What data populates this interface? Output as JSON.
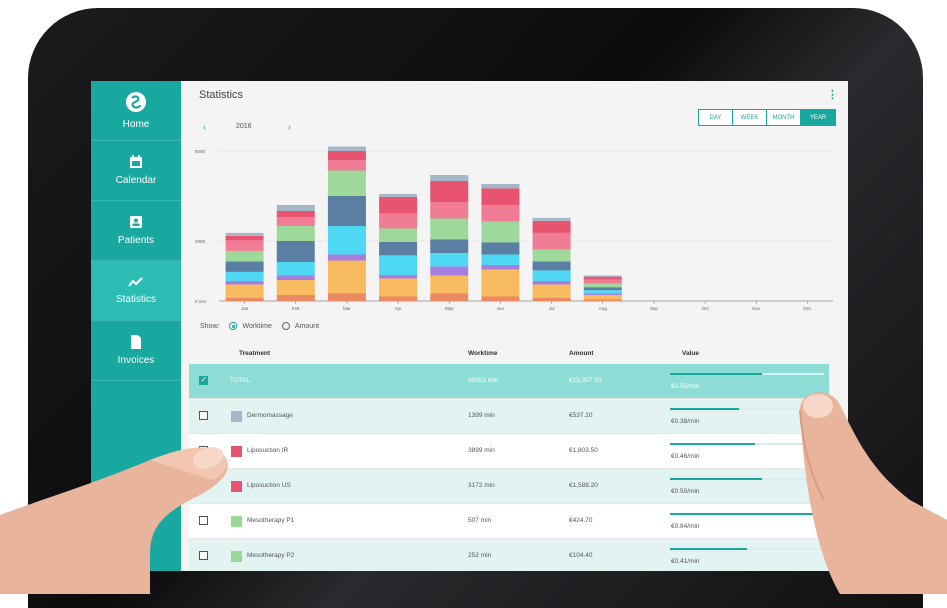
{
  "title": "Statistics",
  "year": "2016",
  "nav": {
    "prev": "‹",
    "next": "›"
  },
  "ranges": [
    "DAY",
    "WEEK",
    "MONTH",
    "YEAR"
  ],
  "active_range": "YEAR",
  "sidebar": [
    {
      "label": "Home",
      "icon": "logo-icon"
    },
    {
      "label": "Calendar",
      "icon": "calendar-icon"
    },
    {
      "label": "Patients",
      "icon": "patient-icon"
    },
    {
      "label": "Statistics",
      "icon": "chart-line-icon",
      "active": true
    },
    {
      "label": "Invoices",
      "icon": "document-icon"
    }
  ],
  "show": {
    "label": "Show:",
    "options": [
      "Worktime",
      "Amount"
    ],
    "selected": "Worktime"
  },
  "table": {
    "headers": {
      "treatment": "Treatment",
      "worktime": "Worktime",
      "amount": "Amount",
      "value": "Value"
    },
    "rows": [
      {
        "name": "TOTAL",
        "worktime": "30953 min",
        "amount": "€15,357.50",
        "value": "€0.50/min",
        "value_fraction": 0.6,
        "checked": true,
        "color": ""
      },
      {
        "name": "Dermomassage",
        "worktime": "1399 min",
        "amount": "€537.10",
        "value": "€0.38/min",
        "value_fraction": 0.45,
        "checked": false,
        "color": "#a4b6c8"
      },
      {
        "name": "Liposuction IR",
        "worktime": "3899 min",
        "amount": "€1,803.50",
        "value": "€0.46/min",
        "value_fraction": 0.55,
        "checked": false,
        "color": "#e8536f"
      },
      {
        "name": "Liposuction US",
        "worktime": "3172 min",
        "amount": "€1,588.20",
        "value": "€0.50/min",
        "value_fraction": 0.6,
        "checked": false,
        "color": "#e8536f"
      },
      {
        "name": "Mesotherapy P1",
        "worktime": "507 min",
        "amount": "€424.70",
        "value": "€0.84/min",
        "value_fraction": 0.95,
        "checked": false,
        "color": "#9ad896"
      },
      {
        "name": "Mesotherapy P2",
        "worktime": "252 min",
        "amount": "€104.40",
        "value": "€0.41/min",
        "value_fraction": 0.5,
        "checked": false,
        "color": "#9ad896"
      }
    ]
  },
  "chart_data": {
    "type": "bar",
    "stacked": true,
    "categories": [
      "Jan",
      "Feb",
      "Mar",
      "Apr",
      "May",
      "Jun",
      "Jul",
      "Aug",
      "Sep",
      "Oct",
      "Nov",
      "Dec"
    ],
    "y_ticks": [
      "0 min",
      "2000",
      "5000"
    ],
    "ylim": [
      0,
      5000
    ],
    "grid": true,
    "series": [
      {
        "color": "#e98a62",
        "values": [
          100,
          200,
          250,
          150,
          250,
          150,
          100,
          50,
          0,
          0,
          0,
          0
        ]
      },
      {
        "color": "#f8bb60",
        "values": [
          450,
          500,
          1100,
          600,
          600,
          900,
          450,
          150,
          0,
          0,
          0,
          0
        ]
      },
      {
        "color": "#a67ee0",
        "values": [
          120,
          150,
          200,
          120,
          300,
          150,
          120,
          60,
          0,
          0,
          0,
          0
        ]
      },
      {
        "color": "#4ed8f4",
        "values": [
          300,
          450,
          950,
          650,
          450,
          350,
          350,
          100,
          0,
          0,
          0,
          0
        ]
      },
      {
        "color": "#5a7fa2",
        "values": [
          350,
          700,
          1000,
          450,
          450,
          400,
          300,
          100,
          0,
          0,
          0,
          0
        ]
      },
      {
        "color": "#9ed89b",
        "values": [
          350,
          500,
          850,
          450,
          700,
          700,
          400,
          120,
          0,
          0,
          0,
          0
        ]
      },
      {
        "color": "#f07c95",
        "values": [
          350,
          300,
          350,
          500,
          550,
          550,
          550,
          130,
          0,
          0,
          0,
          0
        ]
      },
      {
        "color": "#e8536f",
        "values": [
          150,
          200,
          300,
          550,
          700,
          550,
          400,
          100,
          0,
          0,
          0,
          0
        ]
      },
      {
        "color": "#a4b6c8",
        "values": [
          100,
          200,
          150,
          100,
          200,
          150,
          100,
          40,
          0,
          0,
          0,
          0
        ]
      }
    ]
  }
}
